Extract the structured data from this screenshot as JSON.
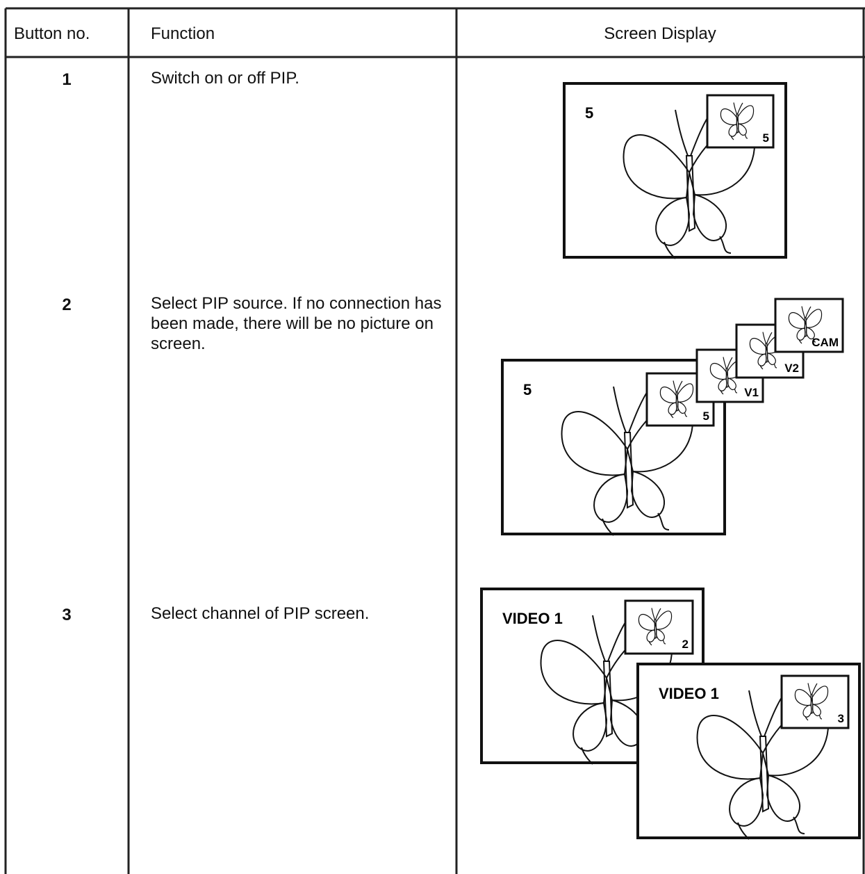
{
  "table": {
    "headers": [
      "Button no.",
      "Function",
      "Screen Display"
    ],
    "rows": [
      {
        "button": "1",
        "function": "Switch on or off PIP.",
        "display": {
          "screens": [
            {
              "label": "5",
              "pips": [
                "5"
              ]
            }
          ]
        }
      },
      {
        "button": "2",
        "function": "Select PIP source. If no connection has been made, there will be no picture on screen.",
        "display": {
          "screens": [
            {
              "label": "5",
              "pips": [
                "5",
                "V1",
                "V2",
                "CAM"
              ]
            }
          ]
        }
      },
      {
        "button": "3",
        "function": "Select channel of PIP screen.",
        "display": {
          "screens": [
            {
              "label": "VIDEO 1",
              "pips": [
                "2"
              ]
            },
            {
              "label": "VIDEO 1",
              "pips": [
                "3"
              ]
            }
          ]
        }
      }
    ]
  }
}
